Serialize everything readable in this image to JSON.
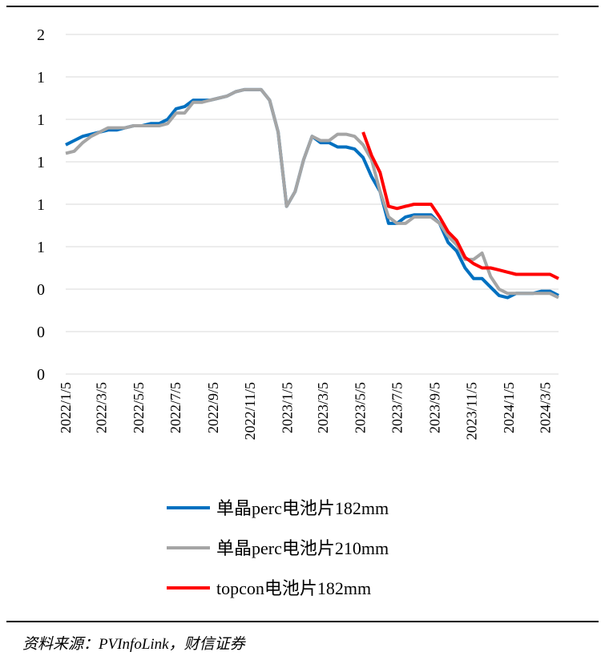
{
  "chart_data": {
    "type": "line",
    "x": [
      "2022/1/5",
      "2022/1/19",
      "2022/2/2",
      "2022/2/16",
      "2022/3/2",
      "2022/3/16",
      "2022/3/30",
      "2022/4/13",
      "2022/4/27",
      "2022/5/11",
      "2022/5/25",
      "2022/6/8",
      "2022/6/22",
      "2022/7/6",
      "2022/7/20",
      "2022/8/3",
      "2022/8/17",
      "2022/8/31",
      "2022/9/14",
      "2022/9/28",
      "2022/10/12",
      "2022/10/26",
      "2022/11/9",
      "2022/11/23",
      "2022/12/7",
      "2022/12/21",
      "2023/1/4",
      "2023/1/18",
      "2023/2/1",
      "2023/2/15",
      "2023/3/1",
      "2023/3/15",
      "2023/3/29",
      "2023/4/12",
      "2023/4/26",
      "2023/5/10",
      "2023/5/24",
      "2023/6/7",
      "2023/6/21",
      "2023/7/5",
      "2023/7/19",
      "2023/8/2",
      "2023/8/16",
      "2023/8/30",
      "2023/9/13",
      "2023/9/27",
      "2023/10/11",
      "2023/10/25",
      "2023/11/8",
      "2023/11/22",
      "2023/12/6",
      "2023/12/20",
      "2024/1/3",
      "2024/1/17",
      "2024/1/31",
      "2024/2/14",
      "2024/2/28",
      "2024/3/13",
      "2024/3/27"
    ],
    "series": [
      {
        "name": "单晶perc电池片182mm",
        "color": "#0070c0",
        "values": [
          1.08,
          1.1,
          1.12,
          1.13,
          1.14,
          1.15,
          1.15,
          1.16,
          1.17,
          1.17,
          1.18,
          1.18,
          1.2,
          1.25,
          1.26,
          1.29,
          1.29,
          1.29,
          1.3,
          1.31,
          1.33,
          1.34,
          1.34,
          1.34,
          1.29,
          1.14,
          0.79,
          0.86,
          1.01,
          1.12,
          1.09,
          1.09,
          1.07,
          1.07,
          1.06,
          1.02,
          0.93,
          0.86,
          0.71,
          0.71,
          0.74,
          0.75,
          0.75,
          0.75,
          0.71,
          0.62,
          0.58,
          0.5,
          0.45,
          0.45,
          0.41,
          0.37,
          0.36,
          0.38,
          0.38,
          0.38,
          0.39,
          0.39,
          0.37
        ]
      },
      {
        "name": "单晶perc电池片210mm",
        "color": "#a5a5a5",
        "values": [
          1.04,
          1.05,
          1.09,
          1.12,
          1.14,
          1.16,
          1.16,
          1.16,
          1.17,
          1.17,
          1.17,
          1.17,
          1.18,
          1.23,
          1.23,
          1.28,
          1.28,
          1.29,
          1.3,
          1.31,
          1.33,
          1.34,
          1.34,
          1.34,
          1.29,
          1.14,
          0.79,
          0.86,
          1.01,
          1.12,
          1.1,
          1.1,
          1.13,
          1.13,
          1.12,
          1.08,
          1.01,
          0.86,
          0.74,
          0.71,
          0.71,
          0.74,
          0.74,
          0.74,
          0.71,
          0.65,
          0.61,
          0.54,
          0.54,
          0.57,
          0.46,
          0.4,
          0.38,
          0.38,
          0.38,
          0.38,
          0.38,
          0.38,
          0.36
        ]
      },
      {
        "name": "topcon电池片182mm",
        "color": "#ff0000",
        "values": [
          null,
          null,
          null,
          null,
          null,
          null,
          null,
          null,
          null,
          null,
          null,
          null,
          null,
          null,
          null,
          null,
          null,
          null,
          null,
          null,
          null,
          null,
          null,
          null,
          null,
          null,
          null,
          null,
          null,
          null,
          null,
          null,
          null,
          null,
          null,
          1.14,
          1.03,
          0.95,
          0.79,
          0.78,
          0.79,
          0.8,
          0.8,
          0.8,
          0.74,
          0.67,
          0.63,
          0.55,
          0.52,
          0.5,
          0.5,
          0.49,
          0.48,
          0.47,
          0.47,
          0.47,
          0.47,
          0.47,
          0.45
        ]
      }
    ],
    "xlim": [
      "2022/1/5",
      "2024/3/27"
    ],
    "xticks": [
      "2022/1/5",
      "2022/3/5",
      "2022/5/5",
      "2022/7/5",
      "2022/9/5",
      "2022/11/5",
      "2023/1/5",
      "2023/3/5",
      "2023/5/5",
      "2023/7/5",
      "2023/9/5",
      "2023/11/5",
      "2024/1/5",
      "2024/3/5"
    ],
    "ylim": [
      0,
      1.6
    ],
    "yticks": [
      {
        "value": 0,
        "label": "0"
      },
      {
        "value": 0.2,
        "label": "0"
      },
      {
        "value": 0.4,
        "label": "0"
      },
      {
        "value": 0.6,
        "label": "1"
      },
      {
        "value": 0.8,
        "label": "1"
      },
      {
        "value": 1.0,
        "label": "1"
      },
      {
        "value": 1.2,
        "label": "1"
      },
      {
        "value": 1.4,
        "label": "1"
      },
      {
        "value": 1.6,
        "label": "2"
      }
    ],
    "grid": true,
    "legend": "bottom",
    "source": "资料来源：PVInfoLink，财信证券"
  }
}
